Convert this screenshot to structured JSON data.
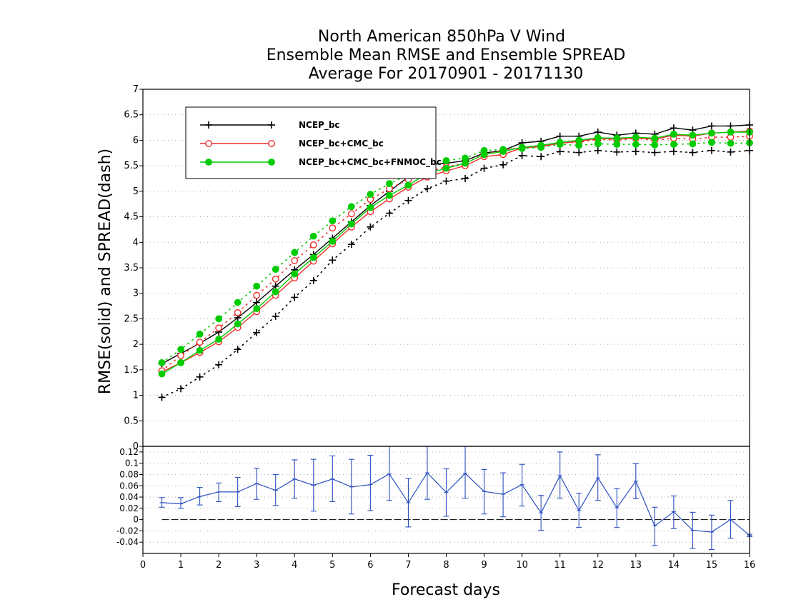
{
  "chart_data": [
    {
      "type": "line",
      "title": [
        "North American 850hPa V Wind",
        "Ensemble Mean RMSE and Ensemble SPREAD",
        "Average For 20170901 - 20171130"
      ],
      "ylabel": "RMSE(solid) and SPREAD(dash)",
      "xlabel": "Forecast days",
      "xlim": [
        0,
        16
      ],
      "ylim": [
        0,
        7
      ],
      "xticks": [
        "0",
        "1",
        "2",
        "3",
        "4",
        "5",
        "6",
        "7",
        "8",
        "9",
        "10",
        "11",
        "12",
        "13",
        "14",
        "15",
        "16"
      ],
      "yticks": [
        "0",
        "0.5",
        "1",
        "1.5",
        "2",
        "2.5",
        "3",
        "3.5",
        "4",
        "4.5",
        "5",
        "5.5",
        "6",
        "6.5",
        "7"
      ],
      "grid": true,
      "legend_position": "top-left",
      "x": [
        0.5,
        1,
        1.5,
        2,
        2.5,
        3,
        3.5,
        4,
        4.5,
        5,
        5.5,
        6,
        6.5,
        7,
        7.5,
        8,
        8.5,
        9,
        9.5,
        10,
        10.5,
        11,
        11.5,
        12,
        12.5,
        13,
        13.5,
        14,
        14.5,
        15,
        15.5,
        16
      ],
      "series": [
        {
          "name": "NCEP_bc",
          "color": "#000000",
          "marker": "plus",
          "rmse": [
            1.62,
            1.82,
            2.02,
            2.24,
            2.52,
            2.82,
            3.14,
            3.46,
            3.76,
            4.08,
            4.4,
            4.72,
            5.0,
            5.28,
            5.52,
            5.55,
            5.6,
            5.75,
            5.8,
            5.95,
            5.98,
            6.08,
            6.08,
            6.16,
            6.1,
            6.14,
            6.12,
            6.24,
            6.2,
            6.28,
            6.28,
            6.3
          ],
          "spread": [
            0.96,
            1.13,
            1.36,
            1.6,
            1.9,
            2.23,
            2.55,
            2.92,
            3.25,
            3.65,
            3.96,
            4.3,
            4.57,
            4.82,
            5.05,
            5.2,
            5.25,
            5.45,
            5.52,
            5.7,
            5.68,
            5.78,
            5.76,
            5.8,
            5.77,
            5.78,
            5.76,
            5.78,
            5.76,
            5.8,
            5.77,
            5.8
          ]
        },
        {
          "name": "NCEP_bc+CMC_bc",
          "color": "#ee2c2c",
          "marker": "open-circle",
          "rmse": [
            1.46,
            1.64,
            1.84,
            2.05,
            2.33,
            2.64,
            2.96,
            3.3,
            3.63,
            3.97,
            4.3,
            4.6,
            4.85,
            5.08,
            5.28,
            5.4,
            5.5,
            5.68,
            5.72,
            5.85,
            5.88,
            5.94,
            5.98,
            6.04,
            6.02,
            6.05,
            6.02,
            6.1,
            6.08,
            6.14,
            6.16,
            6.18
          ],
          "spread": [
            1.48,
            1.78,
            2.04,
            2.32,
            2.62,
            2.96,
            3.28,
            3.64,
            3.95,
            4.28,
            4.56,
            4.84,
            5.05,
            5.23,
            5.38,
            5.48,
            5.55,
            5.73,
            5.8,
            5.86,
            5.87,
            5.95,
            5.96,
            6.02,
            6.0,
            6.04,
            6.0,
            6.04,
            6.02,
            6.06,
            6.06,
            6.08
          ]
        },
        {
          "name": "NCEP_bc+CMC_bc+FNMOC_bc",
          "color": "#00cc00",
          "marker": "filled-circle",
          "rmse": [
            1.42,
            1.64,
            1.88,
            2.1,
            2.4,
            2.7,
            3.03,
            3.38,
            3.7,
            4.02,
            4.36,
            4.68,
            4.92,
            5.12,
            5.35,
            5.45,
            5.55,
            5.72,
            5.78,
            5.86,
            5.9,
            5.96,
            6.0,
            6.05,
            6.04,
            6.06,
            6.04,
            6.12,
            6.1,
            6.14,
            6.16,
            6.16
          ],
          "spread": [
            1.64,
            1.9,
            2.2,
            2.5,
            2.82,
            3.14,
            3.47,
            3.8,
            4.12,
            4.42,
            4.7,
            4.94,
            5.15,
            5.32,
            5.46,
            5.6,
            5.65,
            5.8,
            5.82,
            5.84,
            5.86,
            5.92,
            5.9,
            5.93,
            5.92,
            5.92,
            5.91,
            5.92,
            5.93,
            5.96,
            5.94,
            5.95
          ]
        }
      ]
    },
    {
      "type": "line",
      "subtype": "difference-with-error-bars",
      "xlim": [
        0,
        16
      ],
      "ylim": [
        -0.06,
        0.13
      ],
      "yticks": [
        "0.12",
        "0.1",
        "0.08",
        "0.06",
        "0.04",
        "0.02",
        "0",
        "-0.02",
        "-0.04"
      ],
      "grid": true,
      "series": [
        {
          "color": "#2b4fc0",
          "x": [
            0.5,
            1,
            1.5,
            2,
            2.5,
            3,
            3.5,
            4,
            4.5,
            5,
            5.5,
            6,
            6.5,
            7,
            7.5,
            8,
            8.5,
            9,
            9.5,
            10,
            10.5,
            11,
            11.5,
            12,
            12.5,
            13,
            13.5,
            14,
            14.5,
            15,
            15.5,
            16
          ],
          "values": [
            0.03,
            0.028,
            0.041,
            0.049,
            0.049,
            0.064,
            0.052,
            0.072,
            0.061,
            0.072,
            0.058,
            0.062,
            0.081,
            0.03,
            0.083,
            0.048,
            0.082,
            0.05,
            0.045,
            0.062,
            0.012,
            0.078,
            0.016,
            0.074,
            0.021,
            0.068,
            -0.011,
            0.014,
            -0.019,
            -0.022,
            0.0,
            -0.028
          ],
          "err_low": [
            0.022,
            0.02,
            0.026,
            0.032,
            0.023,
            0.036,
            0.025,
            0.038,
            0.015,
            0.032,
            0.01,
            0.016,
            0.034,
            -0.013,
            0.036,
            0.006,
            0.038,
            0.01,
            0.005,
            0.024,
            -0.019,
            0.038,
            -0.014,
            0.034,
            -0.014,
            0.037,
            -0.046,
            -0.016,
            -0.051,
            -0.053,
            -0.033,
            -0.03
          ],
          "err_high": [
            0.039,
            0.039,
            0.057,
            0.065,
            0.075,
            0.091,
            0.08,
            0.106,
            0.107,
            0.113,
            0.107,
            0.114,
            0.135,
            0.073,
            0.13,
            0.09,
            0.133,
            0.089,
            0.083,
            0.098,
            0.043,
            0.12,
            0.047,
            0.115,
            0.055,
            0.099,
            0.022,
            0.042,
            0.013,
            0.008,
            0.034,
            -0.026
          ]
        }
      ]
    }
  ]
}
